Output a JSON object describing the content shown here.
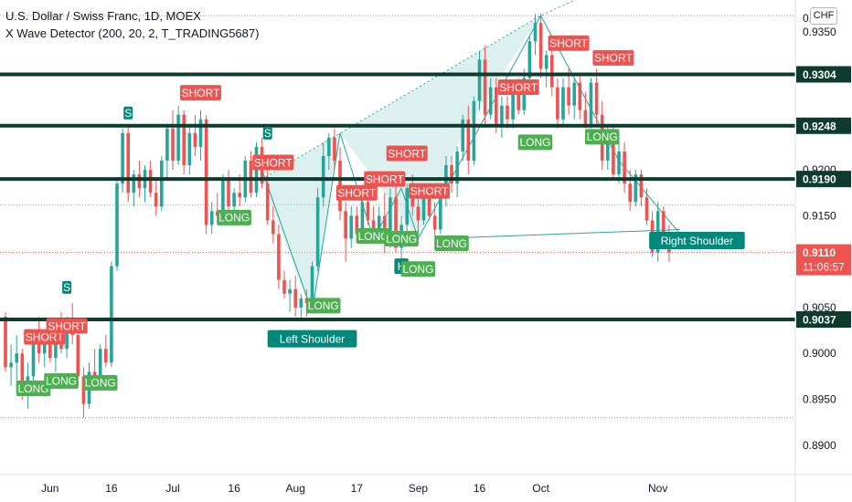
{
  "header": {
    "symbol_line": "U.S. Dollar / Swiss Franc, 1D, MOEX",
    "indicator_line": "X Wave Detector (200, 20, 2, T_TRADING5687)",
    "currency": "CHF"
  },
  "colors": {
    "up": "#26a69a",
    "down": "#ef5350",
    "level_line": "#0d3b2e",
    "pattern_fill": "#b2dfdb",
    "pattern_line": "#26a69a",
    "short_badge": "#ef5350",
    "long_badge": "#4caf50",
    "shoulder_badge": "#00897b",
    "price_badge": "#ef5350"
  },
  "chart_data": {
    "type": "candlestick",
    "ylim": [
      0.8868,
      0.9385
    ],
    "y_ticks": [
      "0.8900",
      "0.8950",
      "0.9000",
      "0.9050",
      "0.9150",
      "0.9200",
      "0.9350"
    ],
    "x_ticks": [
      {
        "label": "Jun",
        "index": 8
      },
      {
        "label": "16",
        "index": 19
      },
      {
        "label": "Jul",
        "index": 30
      },
      {
        "label": "16",
        "index": 41
      },
      {
        "label": "Aug",
        "index": 52
      },
      {
        "label": "17",
        "index": 63
      },
      {
        "label": "Sep",
        "index": 74
      },
      {
        "label": "16",
        "index": 85
      },
      {
        "label": "Oct",
        "index": 96
      },
      {
        "label": "Nov",
        "index": 117
      }
    ],
    "candles": [
      [
        0.904,
        0.9045,
        0.898,
        0.8985
      ],
      [
        0.8985,
        0.901,
        0.8965,
        0.899
      ],
      [
        0.899,
        0.902,
        0.897,
        0.9
      ],
      [
        0.9,
        0.9005,
        0.895,
        0.896
      ],
      [
        0.896,
        0.899,
        0.894,
        0.8975
      ],
      [
        0.8975,
        0.902,
        0.8965,
        0.9015
      ],
      [
        0.9015,
        0.904,
        0.899,
        0.9
      ],
      [
        0.9,
        0.9025,
        0.8985,
        0.902
      ],
      [
        0.902,
        0.9035,
        0.899,
        0.8995
      ],
      [
        0.8995,
        0.903,
        0.898,
        0.9025
      ],
      [
        0.9025,
        0.9045,
        0.9,
        0.9005
      ],
      [
        0.9005,
        0.904,
        0.8995,
        0.9035
      ],
      [
        0.9035,
        0.9055,
        0.901,
        0.902
      ],
      [
        0.902,
        0.903,
        0.8965,
        0.8975
      ],
      [
        0.8975,
        0.8985,
        0.893,
        0.8945
      ],
      [
        0.8945,
        0.899,
        0.894,
        0.898
      ],
      [
        0.898,
        0.9005,
        0.896,
        0.8965
      ],
      [
        0.8965,
        0.901,
        0.896,
        0.9005
      ],
      [
        0.9005,
        0.902,
        0.8985,
        0.899
      ],
      [
        0.899,
        0.91,
        0.8985,
        0.9095
      ],
      [
        0.9095,
        0.919,
        0.909,
        0.9185
      ],
      [
        0.9185,
        0.9245,
        0.9175,
        0.924
      ],
      [
        0.924,
        0.925,
        0.9165,
        0.9175
      ],
      [
        0.9175,
        0.92,
        0.916,
        0.9195
      ],
      [
        0.9195,
        0.921,
        0.917,
        0.918
      ],
      [
        0.918,
        0.9205,
        0.9165,
        0.92
      ],
      [
        0.92,
        0.921,
        0.917,
        0.9175
      ],
      [
        0.9175,
        0.919,
        0.915,
        0.916
      ],
      [
        0.916,
        0.9215,
        0.9155,
        0.921
      ],
      [
        0.921,
        0.925,
        0.919,
        0.9245
      ],
      [
        0.9245,
        0.9265,
        0.92,
        0.921
      ],
      [
        0.921,
        0.927,
        0.9205,
        0.926
      ],
      [
        0.926,
        0.9265,
        0.9195,
        0.9205
      ],
      [
        0.9205,
        0.925,
        0.9195,
        0.924
      ],
      [
        0.924,
        0.926,
        0.9215,
        0.9225
      ],
      [
        0.9225,
        0.9265,
        0.921,
        0.9255
      ],
      [
        0.9255,
        0.926,
        0.913,
        0.914
      ],
      [
        0.914,
        0.9165,
        0.913,
        0.9155
      ],
      [
        0.9155,
        0.9175,
        0.914,
        0.915
      ],
      [
        0.915,
        0.9195,
        0.9145,
        0.919
      ],
      [
        0.919,
        0.92,
        0.915,
        0.916
      ],
      [
        0.916,
        0.918,
        0.9145,
        0.9175
      ],
      [
        0.9175,
        0.9195,
        0.916,
        0.917
      ],
      [
        0.917,
        0.9215,
        0.9165,
        0.921
      ],
      [
        0.921,
        0.922,
        0.917,
        0.9175
      ],
      [
        0.9175,
        0.923,
        0.917,
        0.9225
      ],
      [
        0.9225,
        0.9235,
        0.918,
        0.9185
      ],
      [
        0.9185,
        0.92,
        0.914,
        0.9145
      ],
      [
        0.9145,
        0.916,
        0.912,
        0.913
      ],
      [
        0.913,
        0.914,
        0.907,
        0.908
      ],
      [
        0.908,
        0.909,
        0.906,
        0.9065
      ],
      [
        0.9065,
        0.908,
        0.9045,
        0.907
      ],
      [
        0.907,
        0.9085,
        0.904,
        0.905
      ],
      [
        0.905,
        0.9065,
        0.9035,
        0.906
      ],
      [
        0.906,
        0.907,
        0.904,
        0.9055
      ],
      [
        0.9055,
        0.91,
        0.905,
        0.9095
      ],
      [
        0.9095,
        0.918,
        0.909,
        0.917
      ],
      [
        0.917,
        0.923,
        0.916,
        0.9215
      ],
      [
        0.9215,
        0.924,
        0.92,
        0.9235
      ],
      [
        0.9235,
        0.9245,
        0.92,
        0.921
      ],
      [
        0.921,
        0.9225,
        0.9145,
        0.9155
      ],
      [
        0.9155,
        0.9165,
        0.91,
        0.9125
      ],
      [
        0.9125,
        0.916,
        0.9115,
        0.915
      ],
      [
        0.915,
        0.916,
        0.912,
        0.913
      ],
      [
        0.913,
        0.9175,
        0.9125,
        0.9165
      ],
      [
        0.9165,
        0.9185,
        0.914,
        0.9145
      ],
      [
        0.9145,
        0.916,
        0.912,
        0.9135
      ],
      [
        0.9135,
        0.916,
        0.9125,
        0.915
      ],
      [
        0.915,
        0.9175,
        0.911,
        0.912
      ],
      [
        0.912,
        0.918,
        0.9115,
        0.917
      ],
      [
        0.917,
        0.919,
        0.911,
        0.9115
      ],
      [
        0.9115,
        0.915,
        0.91,
        0.914
      ],
      [
        0.914,
        0.9185,
        0.913,
        0.918
      ],
      [
        0.918,
        0.9195,
        0.915,
        0.916
      ],
      [
        0.916,
        0.917,
        0.913,
        0.9145
      ],
      [
        0.9145,
        0.918,
        0.914,
        0.9175
      ],
      [
        0.9175,
        0.9185,
        0.9145,
        0.915
      ],
      [
        0.915,
        0.9165,
        0.9125,
        0.9135
      ],
      [
        0.9135,
        0.9175,
        0.913,
        0.917
      ],
      [
        0.917,
        0.9215,
        0.916,
        0.9205
      ],
      [
        0.9205,
        0.9215,
        0.9175,
        0.9185
      ],
      [
        0.9185,
        0.9225,
        0.917,
        0.922
      ],
      [
        0.922,
        0.926,
        0.921,
        0.9255
      ],
      [
        0.9255,
        0.927,
        0.9195,
        0.921
      ],
      [
        0.921,
        0.928,
        0.9205,
        0.9275
      ],
      [
        0.9275,
        0.933,
        0.9265,
        0.932
      ],
      [
        0.932,
        0.9335,
        0.925,
        0.926
      ],
      [
        0.926,
        0.93,
        0.9255,
        0.929
      ],
      [
        0.929,
        0.93,
        0.924,
        0.925
      ],
      [
        0.925,
        0.928,
        0.9235,
        0.927
      ],
      [
        0.927,
        0.928,
        0.9245,
        0.9255
      ],
      [
        0.9255,
        0.929,
        0.9245,
        0.9285
      ],
      [
        0.9285,
        0.93,
        0.926,
        0.9265
      ],
      [
        0.9265,
        0.931,
        0.926,
        0.93
      ],
      [
        0.93,
        0.9345,
        0.9295,
        0.934
      ],
      [
        0.934,
        0.937,
        0.9325,
        0.936
      ],
      [
        0.936,
        0.937,
        0.93,
        0.931
      ],
      [
        0.931,
        0.933,
        0.929,
        0.9325
      ],
      [
        0.9325,
        0.9335,
        0.928,
        0.929
      ],
      [
        0.929,
        0.93,
        0.9245,
        0.9255
      ],
      [
        0.9255,
        0.93,
        0.925,
        0.929
      ],
      [
        0.929,
        0.931,
        0.926,
        0.927
      ],
      [
        0.927,
        0.93,
        0.9255,
        0.9295
      ],
      [
        0.9295,
        0.9305,
        0.9255,
        0.9265
      ],
      [
        0.9265,
        0.9285,
        0.9245,
        0.925
      ],
      [
        0.925,
        0.93,
        0.9245,
        0.9295
      ],
      [
        0.9295,
        0.931,
        0.925,
        0.926
      ],
      [
        0.926,
        0.9275,
        0.92,
        0.921
      ],
      [
        0.921,
        0.925,
        0.92,
        0.924
      ],
      [
        0.924,
        0.925,
        0.919,
        0.9195
      ],
      [
        0.9195,
        0.923,
        0.9185,
        0.922
      ],
      [
        0.922,
        0.923,
        0.9175,
        0.9185
      ],
      [
        0.9185,
        0.92,
        0.9155,
        0.9165
      ],
      [
        0.9165,
        0.92,
        0.916,
        0.9195
      ],
      [
        0.9195,
        0.92,
        0.916,
        0.917
      ],
      [
        0.917,
        0.918,
        0.914,
        0.9145
      ],
      [
        0.9145,
        0.9155,
        0.9105,
        0.911
      ],
      [
        0.911,
        0.9165,
        0.91,
        0.9155
      ],
      [
        0.9155,
        0.916,
        0.9115,
        0.9125
      ],
      [
        0.9125,
        0.914,
        0.91,
        0.911
      ]
    ],
    "horizontal_levels": [
      {
        "price": 0.9304,
        "label": "0.9304"
      },
      {
        "price": 0.9248,
        "label": "0.9248"
      },
      {
        "price": 0.919,
        "label": "0.9190"
      },
      {
        "price": 0.9037,
        "label": "0.9037"
      }
    ],
    "dotted_levels": [
      0.9368,
      0.9162,
      0.911,
      0.893
    ],
    "trend_line": [
      [
        46,
        0.919
      ],
      [
        96,
        0.9368
      ],
      [
        122,
        0.944
      ]
    ],
    "neckline": [
      [
        77,
        0.9125
      ],
      [
        121,
        0.9135
      ]
    ],
    "pattern_polygons": [
      [
        [
          46,
          0.919
        ],
        [
          55,
          0.904
        ],
        [
          60,
          0.924
        ],
        [
          96,
          0.9368
        ],
        [
          60,
          0.924
        ]
      ],
      [
        [
          60,
          0.924
        ],
        [
          96,
          0.9368
        ],
        [
          82,
          0.924
        ],
        [
          74,
          0.9125
        ]
      ]
    ],
    "pattern_lines": [
      [
        [
          46,
          0.92
        ],
        [
          55,
          0.9045
        ],
        [
          60,
          0.924
        ],
        [
          66,
          0.9125
        ],
        [
          71,
          0.918
        ],
        [
          74,
          0.9125
        ],
        [
          96,
          0.9368
        ],
        [
          102,
          0.93
        ],
        [
          110,
          0.921
        ],
        [
          121,
          0.913
        ]
      ]
    ],
    "current_price": {
      "label": "0.9110",
      "price": 0.911,
      "countdown": "11:06:57"
    },
    "signals": [
      {
        "text": "SHORT",
        "type": "short",
        "index": 7,
        "price": 0.9018
      },
      {
        "text": "SHORT",
        "type": "short",
        "index": 11,
        "price": 0.903
      },
      {
        "text": "LONG",
        "type": "long",
        "index": 5,
        "price": 0.8962
      },
      {
        "text": "LONG",
        "type": "long",
        "index": 10,
        "price": 0.897
      },
      {
        "text": "LONG",
        "type": "long",
        "index": 17,
        "price": 0.8968
      },
      {
        "text": "S",
        "type": "short_small",
        "index": 11,
        "price": 0.9072
      },
      {
        "text": "S",
        "type": "short_small",
        "index": 22,
        "price": 0.9262
      },
      {
        "text": "SHORT",
        "type": "short",
        "index": 35,
        "price": 0.9284
      },
      {
        "text": "LONG",
        "type": "long",
        "index": 41,
        "price": 0.9148
      },
      {
        "text": "S",
        "type": "short_small",
        "index": 47,
        "price": 0.924
      },
      {
        "text": "SHORT",
        "type": "short",
        "index": 48,
        "price": 0.9208
      },
      {
        "text": "LONG",
        "type": "long",
        "index": 57,
        "price": 0.9052
      },
      {
        "text": "SHORT",
        "type": "short",
        "index": 63,
        "price": 0.9175
      },
      {
        "text": "SHORT",
        "type": "short",
        "index": 68,
        "price": 0.919
      },
      {
        "text": "SHORT",
        "type": "short",
        "index": 72,
        "price": 0.9218
      },
      {
        "text": "SHORT",
        "type": "short",
        "index": 76,
        "price": 0.9177
      },
      {
        "text": "LONG",
        "type": "long",
        "index": 66,
        "price": 0.9128
      },
      {
        "text": "LONG",
        "type": "long",
        "index": 71,
        "price": 0.9125
      },
      {
        "text": "H",
        "type": "shoulder",
        "index": 71,
        "price": 0.9095
      },
      {
        "text": "LONG",
        "type": "long",
        "index": 74,
        "price": 0.9092
      },
      {
        "text": "LONG",
        "type": "long",
        "index": 80,
        "price": 0.912
      },
      {
        "text": "SHORT",
        "type": "short",
        "index": 92,
        "price": 0.929
      },
      {
        "text": "LONG",
        "type": "long",
        "index": 95,
        "price": 0.923
      },
      {
        "text": "SHORT",
        "type": "short",
        "index": 101,
        "price": 0.9338
      },
      {
        "text": "SHORT",
        "type": "short",
        "index": 109,
        "price": 0.9322
      },
      {
        "text": "LONG",
        "type": "long",
        "index": 107,
        "price": 0.9236
      }
    ],
    "shoulder_labels": [
      {
        "text": "Left Shoulder",
        "index": 55,
        "price": 0.9016
      },
      {
        "text": "Right Shoulder",
        "index": 124,
        "price": 0.9123
      }
    ]
  }
}
